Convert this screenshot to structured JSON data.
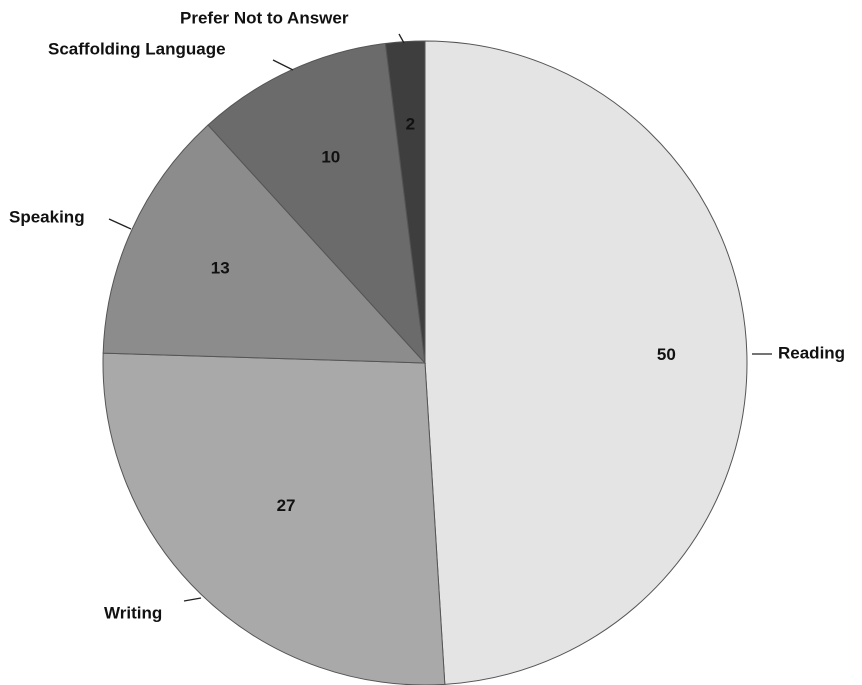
{
  "chart_data": {
    "type": "pie",
    "title": "",
    "categories": [
      "Reading",
      "Writing",
      "Speaking",
      "Scaffolding Language",
      "Prefer Not to Answer"
    ],
    "values": [
      50,
      27,
      13,
      10,
      2
    ],
    "value_labels": [
      "50",
      "27",
      "13",
      "10",
      "2"
    ],
    "colors": [
      "#e4e4e4",
      "#a9a9a9",
      "#8c8c8c",
      "#6b6b6b",
      "#3e3e3e"
    ],
    "start_angle": "12 o'clock",
    "direction": "clockwise",
    "labels_outside_with_leader_lines": true
  }
}
